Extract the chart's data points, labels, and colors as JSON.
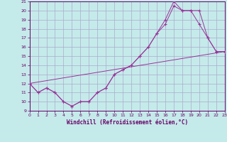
{
  "xlabel": "Windchill (Refroidissement éolien,°C)",
  "bg_color": "#c5eaea",
  "grid_color": "#aaaacc",
  "line_color": "#993399",
  "xlim": [
    0,
    23
  ],
  "ylim": [
    9,
    21
  ],
  "xticks": [
    0,
    1,
    2,
    3,
    4,
    5,
    6,
    7,
    8,
    9,
    10,
    11,
    12,
    13,
    14,
    15,
    16,
    17,
    18,
    19,
    20,
    21,
    22,
    23
  ],
  "yticks": [
    9,
    10,
    11,
    12,
    13,
    14,
    15,
    16,
    17,
    18,
    19,
    20,
    21
  ],
  "line1_x": [
    0,
    1,
    2,
    3,
    4,
    5,
    6,
    7,
    8,
    9,
    10,
    11,
    12,
    13,
    14,
    15,
    16,
    17,
    18,
    19,
    20,
    21,
    22,
    23
  ],
  "line1_y": [
    12.0,
    11.0,
    11.5,
    11.0,
    10.0,
    9.5,
    10.0,
    10.0,
    11.0,
    11.5,
    13.0,
    13.5,
    14.0,
    15.0,
    16.0,
    17.5,
    18.5,
    20.5,
    20.0,
    20.0,
    18.5,
    17.0,
    15.5,
    15.5
  ],
  "line2_x": [
    0,
    1,
    2,
    3,
    4,
    5,
    6,
    7,
    8,
    9,
    10,
    11,
    12,
    13,
    14,
    15,
    16,
    17,
    18,
    19,
    20,
    21,
    22,
    23
  ],
  "line2_y": [
    12.0,
    11.0,
    11.5,
    11.0,
    10.0,
    9.5,
    10.0,
    10.0,
    11.0,
    11.5,
    13.0,
    13.5,
    14.0,
    15.0,
    16.0,
    17.5,
    19.0,
    21.0,
    20.0,
    20.0,
    20.0,
    17.0,
    15.5,
    15.5
  ],
  "line3_x": [
    0,
    23
  ],
  "line3_y": [
    12.0,
    15.5
  ]
}
